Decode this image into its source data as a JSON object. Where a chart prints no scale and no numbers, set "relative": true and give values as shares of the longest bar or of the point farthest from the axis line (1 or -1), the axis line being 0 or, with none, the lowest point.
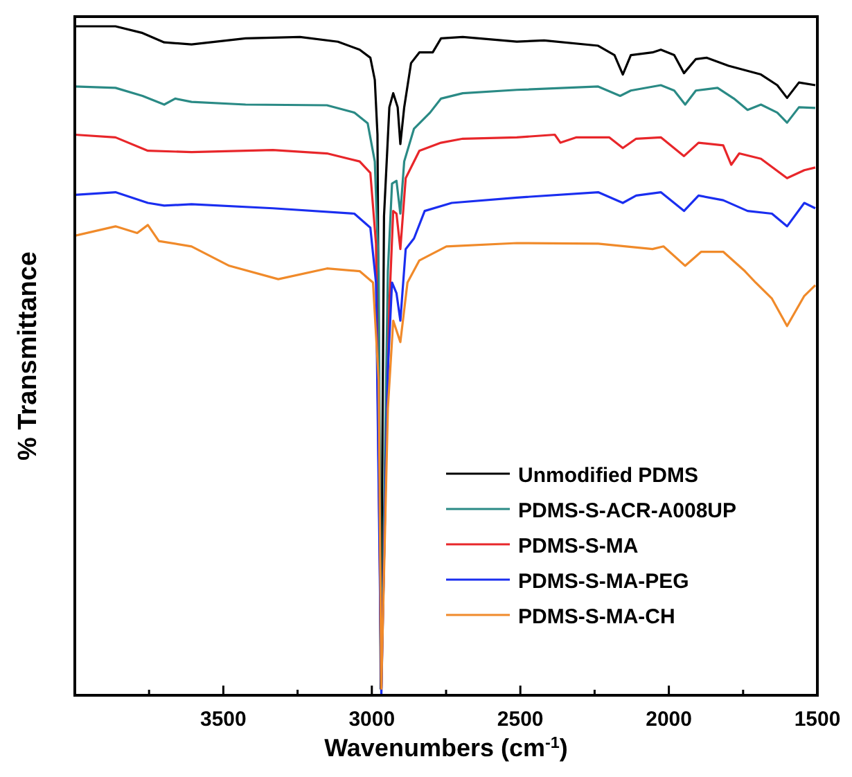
{
  "chart_data": {
    "type": "line",
    "xlabel": "Wavenumbers (cm$^{-1}$)",
    "ylabel": "% Transmittance",
    "relative": true,
    "legend": "bottom right",
    "xlim": [
      4000,
      1500
    ],
    "xticks": [
      {
        "value": 3750,
        "label": null
      },
      3500,
      {
        "value": 3250,
        "label": null
      },
      3000,
      {
        "value": 2750,
        "label": null
      },
      2500,
      {
        "value": 2250,
        "label": null
      },
      2000,
      {
        "value": 1750,
        "label": null
      },
      1500
    ],
    "series": [
      {
        "name": "Unmodified PDMS",
        "color": "#000000",
        "x": [
          4000,
          3863,
          3772,
          3699,
          3607,
          3425,
          3242,
          3114,
          3041,
          3005,
          2990,
          2981,
          2970,
          2959,
          2941,
          2928,
          2913,
          2904,
          2891,
          2868,
          2840,
          2795,
          2767,
          2694,
          2512,
          2420,
          2238,
          2183,
          2155,
          2128,
          2055,
          2027,
          1982,
          1949,
          1909,
          1872,
          1799,
          1690,
          1635,
          1602,
          1562,
          1507
        ],
        "values": [
          1.0,
          1.0,
          0.99,
          0.976,
          0.973,
          0.982,
          0.984,
          0.977,
          0.965,
          0.953,
          0.92,
          0.838,
          0.01,
          0.716,
          0.879,
          0.9,
          0.879,
          0.824,
          0.879,
          0.945,
          0.961,
          0.961,
          0.982,
          0.984,
          0.977,
          0.979,
          0.971,
          0.957,
          0.928,
          0.957,
          0.961,
          0.965,
          0.957,
          0.93,
          0.951,
          0.953,
          0.941,
          0.928,
          0.912,
          0.893,
          0.916,
          0.912
        ]
      },
      {
        "name": "PDMS-S-ACR-A008UP",
        "color": "#2a8a85",
        "x": [
          4000,
          3863,
          3772,
          3699,
          3662,
          3607,
          3425,
          3151,
          3059,
          3014,
          2990,
          2977,
          2968,
          2946,
          2932,
          2917,
          2904,
          2891,
          2858,
          2804,
          2767,
          2694,
          2512,
          2238,
          2164,
          2128,
          2027,
          1982,
          1945,
          1909,
          1836,
          1781,
          1735,
          1690,
          1635,
          1602,
          1562,
          1507
        ],
        "values": [
          0.91,
          0.908,
          0.896,
          0.883,
          0.892,
          0.887,
          0.883,
          0.882,
          0.871,
          0.855,
          0.798,
          0.634,
          0.01,
          0.634,
          0.765,
          0.769,
          0.72,
          0.798,
          0.847,
          0.871,
          0.892,
          0.9,
          0.905,
          0.91,
          0.896,
          0.904,
          0.912,
          0.904,
          0.883,
          0.904,
          0.908,
          0.892,
          0.875,
          0.883,
          0.871,
          0.856,
          0.879,
          0.878
        ]
      },
      {
        "name": "PDMS-S-MA",
        "color": "#e8262a",
        "x": [
          4000,
          3863,
          3754,
          3607,
          3333,
          3151,
          3041,
          3005,
          2986,
          2968,
          2941,
          2928,
          2917,
          2904,
          2886,
          2840,
          2767,
          2694,
          2512,
          2384,
          2365,
          2311,
          2201,
          2155,
          2110,
          2027,
          1949,
          1900,
          1817,
          1790,
          1763,
          1690,
          1602,
          1544,
          1507
        ],
        "values": [
          0.838,
          0.834,
          0.814,
          0.812,
          0.815,
          0.81,
          0.798,
          0.781,
          0.675,
          0.01,
          0.585,
          0.724,
          0.72,
          0.667,
          0.773,
          0.814,
          0.826,
          0.832,
          0.834,
          0.838,
          0.826,
          0.834,
          0.834,
          0.818,
          0.832,
          0.834,
          0.806,
          0.826,
          0.822,
          0.793,
          0.81,
          0.802,
          0.773,
          0.785,
          0.789
        ]
      },
      {
        "name": "PDMS-S-MA-PEG",
        "color": "#1a2ef0",
        "x": [
          4000,
          3863,
          3754,
          3699,
          3607,
          3333,
          3059,
          3005,
          2986,
          2968,
          2946,
          2932,
          2917,
          2904,
          2886,
          2858,
          2822,
          2731,
          2512,
          2238,
          2155,
          2110,
          2027,
          1949,
          1900,
          1817,
          1735,
          1653,
          1602,
          1544,
          1507
        ],
        "values": [
          0.748,
          0.752,
          0.736,
          0.732,
          0.734,
          0.728,
          0.72,
          0.699,
          0.617,
          0.0,
          0.487,
          0.617,
          0.601,
          0.56,
          0.667,
          0.683,
          0.724,
          0.736,
          0.744,
          0.752,
          0.736,
          0.747,
          0.752,
          0.724,
          0.747,
          0.74,
          0.724,
          0.72,
          0.701,
          0.736,
          0.728
        ]
      },
      {
        "name": "PDMS-S-MA-CH",
        "color": "#f08a2a",
        "x": [
          4000,
          3863,
          3790,
          3754,
          3717,
          3607,
          3480,
          3315,
          3151,
          3041,
          2996,
          2977,
          2968,
          2946,
          2928,
          2904,
          2880,
          2840,
          2749,
          2512,
          2238,
          2055,
          2018,
          1945,
          1891,
          1817,
          1744,
          1708,
          1653,
          1602,
          1544,
          1507
        ],
        "values": [
          0.687,
          0.701,
          0.691,
          0.703,
          0.679,
          0.671,
          0.642,
          0.622,
          0.638,
          0.634,
          0.617,
          0.47,
          0.01,
          0.429,
          0.56,
          0.528,
          0.617,
          0.65,
          0.671,
          0.676,
          0.675,
          0.667,
          0.671,
          0.642,
          0.663,
          0.663,
          0.634,
          0.617,
          0.593,
          0.552,
          0.597,
          0.613
        ]
      }
    ]
  }
}
